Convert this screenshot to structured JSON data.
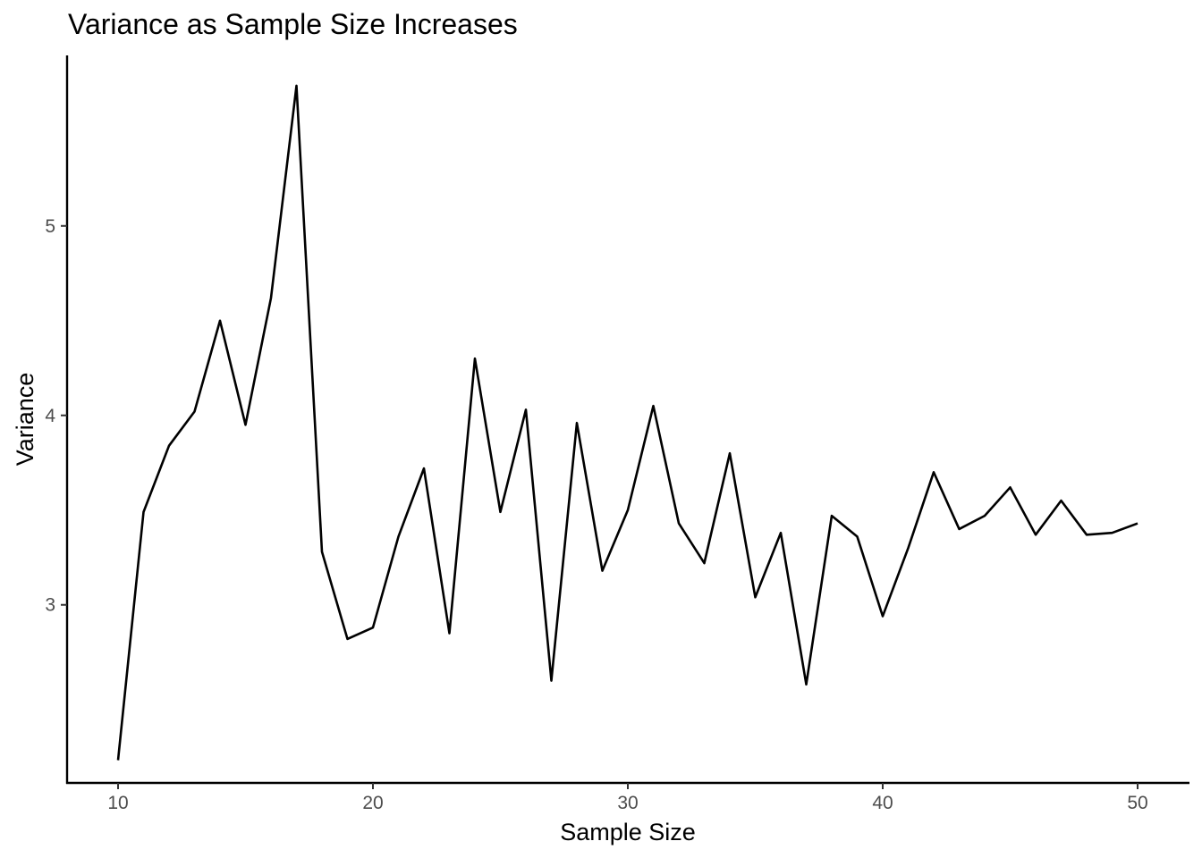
{
  "chart_data": {
    "type": "line",
    "title": "Variance as Sample Size Increases",
    "xlabel": "Sample Size",
    "ylabel": "Variance",
    "xlim": [
      8,
      52
    ],
    "ylim": [
      2.06,
      5.9
    ],
    "x_ticks": [
      10,
      20,
      30,
      40,
      50
    ],
    "y_ticks": [
      3,
      4,
      5
    ],
    "grid": false,
    "legend": "none",
    "line_color": "#000000",
    "series": [
      {
        "x": [
          10,
          11,
          12,
          13,
          14,
          15,
          16,
          17,
          18,
          19,
          20,
          21,
          22,
          23,
          24,
          25,
          26,
          27,
          28,
          29,
          30,
          31,
          32,
          33,
          34,
          35,
          36,
          37,
          38,
          39,
          40,
          41,
          42,
          43,
          44,
          45,
          46,
          47,
          48,
          49,
          50
        ],
        "y": [
          2.18,
          3.49,
          3.84,
          4.02,
          4.5,
          3.95,
          4.62,
          5.74,
          3.28,
          2.82,
          2.88,
          3.36,
          3.72,
          2.85,
          4.3,
          3.49,
          4.03,
          2.6,
          3.96,
          3.18,
          3.5,
          4.05,
          3.43,
          3.22,
          3.8,
          3.04,
          3.38,
          2.58,
          3.47,
          3.36,
          2.94,
          3.3,
          3.7,
          3.4,
          3.47,
          3.62,
          3.37,
          3.55,
          3.37,
          3.38,
          3.43
        ]
      }
    ]
  }
}
